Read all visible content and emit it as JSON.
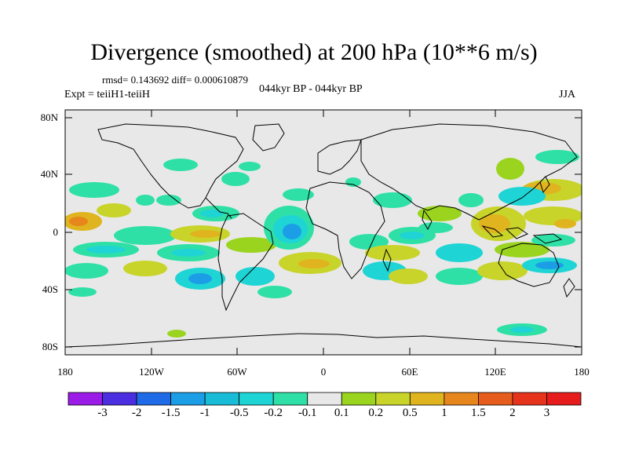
{
  "title": "Divergence (smoothed) at 200 hPa (10**6 m/s)",
  "stats": "rmsd= 0.143692 diff= 0.000610879",
  "experiment": "Expt = teiiH1-teiiH",
  "period": "044kyr BP - 044kyr BP",
  "season": "JJA",
  "y_ticks": [
    "80N",
    "40N",
    "0",
    "40S",
    "80S"
  ],
  "x_ticks": [
    "180",
    "120W",
    "60W",
    "0",
    "60E",
    "120E",
    "180"
  ],
  "colorbar": {
    "labels": [
      "-3",
      "-2",
      "-1.5",
      "-1",
      "-0.5",
      "-0.2",
      "-0.1",
      "0.1",
      "0.2",
      "0.5",
      "1",
      "1.5",
      "2",
      "3"
    ],
    "colors": [
      "#9a1ce6",
      "#4a2ee0",
      "#1f6ae6",
      "#1c9ee6",
      "#19bcd6",
      "#1fd4d4",
      "#2ee0a6",
      "#e8e8e8",
      "#9ad41f",
      "#c8d42a",
      "#e0b41f",
      "#e6861c",
      "#e65c1c",
      "#e6331c",
      "#e61c1c"
    ]
  },
  "colors": {
    "land": "#000000",
    "background": "#e8e8e8",
    "neg_weak": "#2ee0a6",
    "neg_mid": "#1fd4d4",
    "neg_strong": "#1c9ee6",
    "pos_weak": "#9ad41f",
    "pos_mid": "#c8d42a",
    "pos_strong": "#e0b41f",
    "pos_stronger": "#e6861c"
  }
}
